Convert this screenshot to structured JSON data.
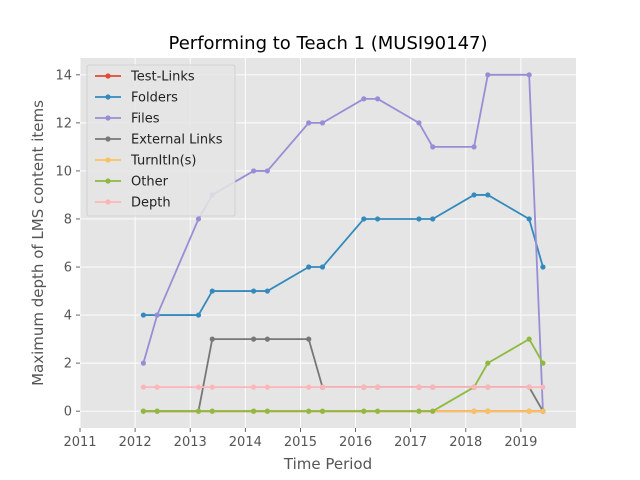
{
  "chart_data": {
    "type": "line",
    "title": "Performing to Teach 1 (MUSI90147)",
    "xlabel": "Time Period",
    "ylabel": "Maximum depth of LMS content items",
    "xlim": [
      2011,
      2020
    ],
    "ylim": [
      -0.7,
      14.7
    ],
    "xticks": [
      2011,
      2012,
      2013,
      2014,
      2015,
      2016,
      2017,
      2018,
      2019
    ],
    "yticks": [
      0,
      2,
      4,
      6,
      8,
      10,
      12,
      14
    ],
    "grid": true,
    "legend_position": "upper-left",
    "x": [
      2012.15,
      2012.4,
      2013.15,
      2013.4,
      2014.15,
      2014.4,
      2015.15,
      2015.4,
      2016.15,
      2016.4,
      2017.15,
      2017.4,
      2018.15,
      2018.4,
      2019.15,
      2019.4
    ],
    "series": [
      {
        "name": "Test-Links",
        "color": "#e24a33",
        "values": [
          0,
          0,
          0,
          0,
          0,
          0,
          0,
          0,
          0,
          0,
          0,
          0,
          0,
          0,
          0,
          0
        ]
      },
      {
        "name": "Folders",
        "color": "#348abd",
        "values": [
          4,
          4,
          4,
          5,
          5,
          5,
          6,
          6,
          8,
          8,
          8,
          8,
          9,
          9,
          8,
          6
        ]
      },
      {
        "name": "Files",
        "color": "#988ed5",
        "values": [
          2,
          4,
          8,
          9,
          10,
          10,
          12,
          12,
          13,
          13,
          12,
          11,
          11,
          14,
          14,
          0
        ]
      },
      {
        "name": "External Links",
        "color": "#777777",
        "values": [
          0,
          0,
          0,
          3,
          3,
          3,
          3,
          1,
          1,
          1,
          1,
          1,
          1,
          1,
          1,
          0
        ]
      },
      {
        "name": "TurnItIn(s)",
        "color": "#fbc15e",
        "values": [
          0,
          0,
          0,
          0,
          0,
          0,
          0,
          0,
          0,
          0,
          0,
          0,
          0,
          0,
          0,
          0
        ]
      },
      {
        "name": "Other",
        "color": "#8eba42",
        "values": [
          0,
          0,
          0,
          0,
          0,
          0,
          0,
          0,
          0,
          0,
          0,
          0,
          1,
          2,
          3,
          2
        ]
      },
      {
        "name": "Depth",
        "color": "#ffb5b8",
        "values": [
          1,
          1,
          1,
          1,
          1,
          1,
          1,
          1,
          1,
          1,
          1,
          1,
          1,
          1,
          1,
          1
        ]
      }
    ]
  }
}
